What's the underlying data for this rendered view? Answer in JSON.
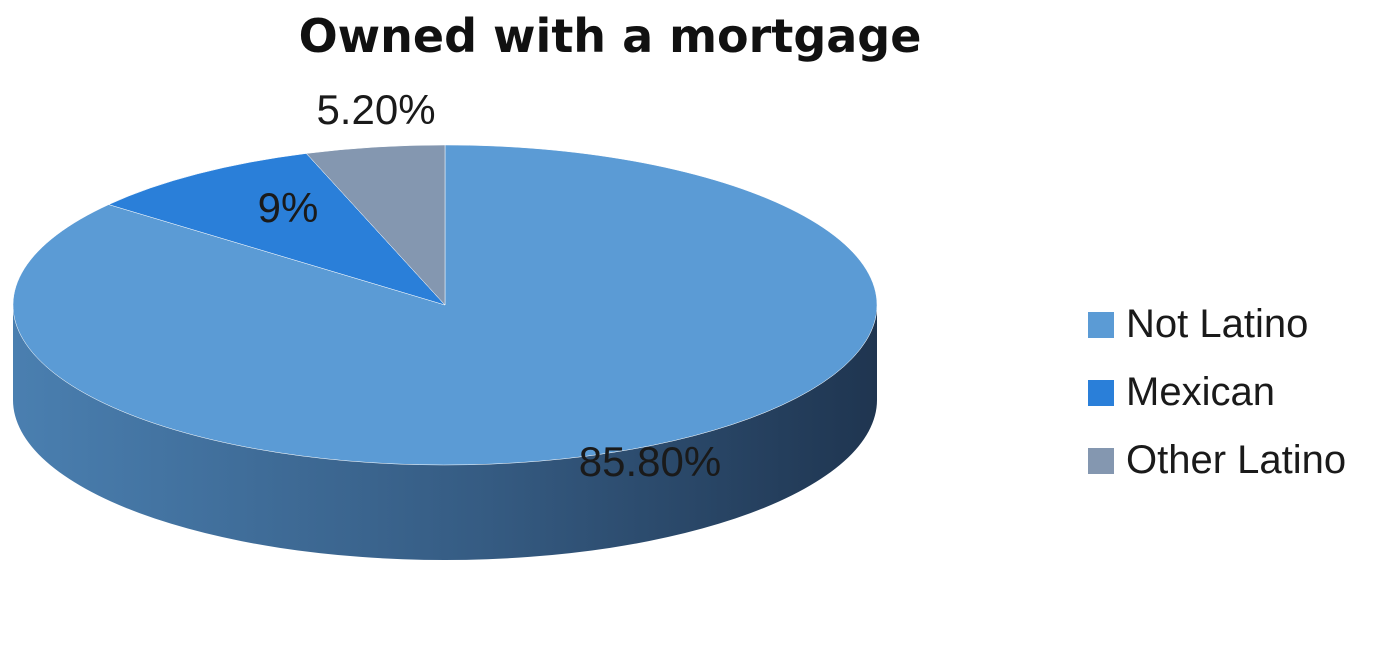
{
  "chart_data": {
    "type": "pie",
    "title": "Owned with a mortgage",
    "three_d": true,
    "start_angle": "12 o'clock",
    "direction": "clockwise",
    "legend_position": "right",
    "slices": [
      {
        "label": "Not Latino",
        "value": 85.8,
        "value_label": "85.80%",
        "color": "#5b9bd5",
        "side_color": "#3d6b97"
      },
      {
        "label": "Mexican",
        "value": 9,
        "value_label": "9%",
        "color": "#2a7fd9",
        "side_color": "#1f5fa3"
      },
      {
        "label": "Other Latino",
        "value": 5.2,
        "value_label": "5.20%",
        "color": "#8497b0",
        "side_color": "#5c6b80"
      }
    ]
  }
}
